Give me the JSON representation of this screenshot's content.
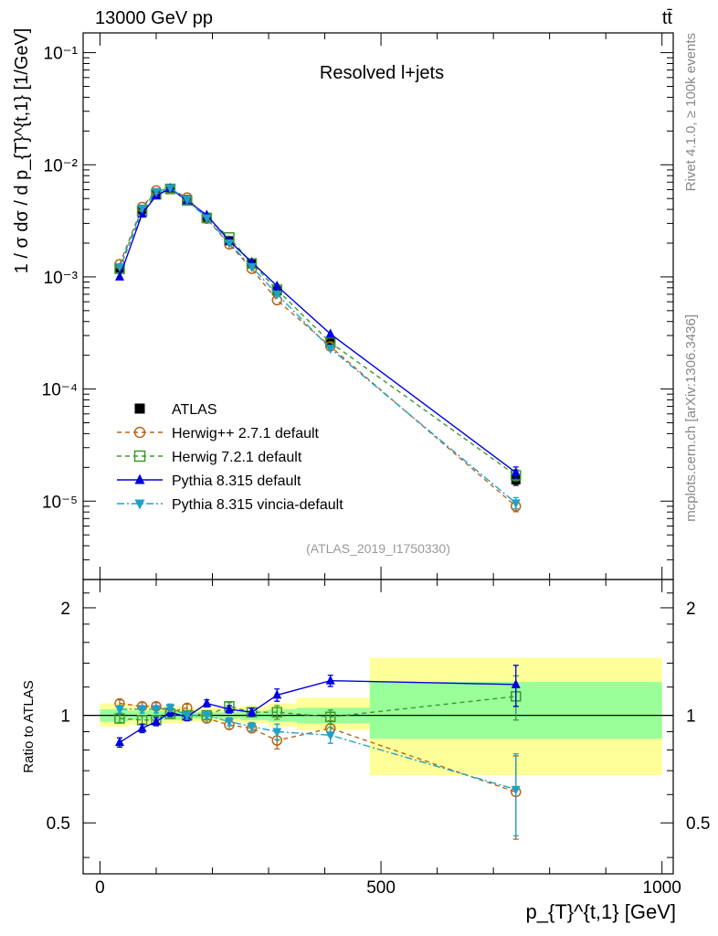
{
  "header": {
    "left": "13000 GeV pp",
    "right": "tt̄"
  },
  "side_labels": {
    "rivet": "Rivet 4.1.0, ≥ 100k events",
    "mcplots": "mcplots.cern.ch [arXiv:1306.3436]"
  },
  "chart_data": [
    {
      "type": "scatter",
      "panel": "main",
      "title": "Resolved l+jets",
      "analysis_tag": "(ATLAS_2019_I1750330)",
      "ylabel": "1 / σ dσ / d p_{T}^{t,1} [1/GeV]",
      "yscale": "log",
      "ylim": [
        2e-06,
        0.15
      ],
      "xlim": [
        -30,
        1020
      ],
      "y_tick_labels": [
        "10⁻¹",
        "10⁻²",
        "10⁻³",
        "10⁻⁴",
        "10⁻⁵"
      ],
      "x": [
        35,
        75,
        100,
        125,
        155,
        190,
        230,
        270,
        315,
        410,
        740
      ],
      "series": [
        {
          "name": "ATLAS",
          "color": "#000000",
          "marker": "square-filled",
          "values": [
            0.0012,
            0.004,
            0.0056,
            0.006,
            0.0049,
            0.0034,
            0.0021,
            0.0013,
            0.00075,
            0.00026,
            1.55e-05
          ]
        },
        {
          "name": "Herwig++ 2.7.1 default",
          "color": "#b5651d",
          "marker": "circle-open",
          "dash": "dash",
          "values": [
            0.0013,
            0.0042,
            0.0059,
            0.0061,
            0.0051,
            0.0033,
            0.00195,
            0.00118,
            0.00062,
            0.00024,
            9e-06
          ]
        },
        {
          "name": "Herwig 7.2.1 default",
          "color": "#3a9a2a",
          "marker": "square-open",
          "dash": "dash",
          "values": [
            0.00118,
            0.00385,
            0.00545,
            0.0061,
            0.0048,
            0.00335,
            0.00225,
            0.00132,
            0.00077,
            0.00026,
            1.7e-05
          ]
        },
        {
          "name": "Pythia 8.315 default",
          "color": "#0000e0",
          "marker": "triangle-up",
          "dash": "solid",
          "values": [
            0.001,
            0.00365,
            0.0053,
            0.00615,
            0.0048,
            0.00355,
            0.0021,
            0.00135,
            0.00083,
            0.00031,
            1.8e-05
          ]
        },
        {
          "name": "Pythia 8.315 vincia-default",
          "color": "#1fa0c8",
          "marker": "triangle-down",
          "dash": "dashdot",
          "values": [
            0.00123,
            0.0041,
            0.00575,
            0.0062,
            0.0049,
            0.00335,
            0.002,
            0.00123,
            0.0007,
            0.00023,
            9.6e-06
          ]
        }
      ]
    },
    {
      "type": "scatter",
      "panel": "ratio",
      "ylabel": "Ratio to ATLAS",
      "ylim": [
        0.36,
        2.4
      ],
      "xlim": [
        -30,
        1020
      ],
      "xlabel": "p_{T}^{t,1} [GeV]",
      "x_tick_labels": [
        "0",
        "500",
        "1000"
      ],
      "y_tick_labels": [
        "2",
        "1",
        "0.5"
      ],
      "x": [
        35,
        75,
        100,
        125,
        155,
        190,
        230,
        270,
        315,
        410,
        740
      ],
      "bands": [
        {
          "name": "stat",
          "color": "#99ff99",
          "edges": [
            0,
            50,
            100,
            150,
            200,
            250,
            300,
            350,
            480,
            1000
          ],
          "lo": [
            0.96,
            0.97,
            0.97,
            0.98,
            0.98,
            0.97,
            0.96,
            0.95,
            0.86
          ],
          "hi": [
            1.04,
            1.03,
            1.03,
            1.02,
            1.02,
            1.03,
            1.04,
            1.05,
            1.24
          ]
        },
        {
          "name": "total",
          "color": "#ffff99",
          "edges": [
            0,
            50,
            100,
            150,
            200,
            250,
            300,
            350,
            480,
            1000
          ],
          "lo": [
            0.93,
            0.94,
            0.95,
            0.96,
            0.96,
            0.95,
            0.93,
            0.91,
            0.68
          ],
          "hi": [
            1.08,
            1.07,
            1.06,
            1.05,
            1.05,
            1.06,
            1.08,
            1.12,
            1.45
          ]
        }
      ],
      "series": [
        {
          "name": "Herwig++ 2.7.1 default",
          "color": "#b5651d",
          "marker": "circle-open",
          "dash": "dash",
          "values": [
            1.08,
            1.06,
            1.06,
            1.02,
            1.05,
            0.98,
            0.94,
            0.92,
            0.85,
            0.92,
            0.61
          ]
        },
        {
          "name": "Herwig 7.2.1 default",
          "color": "#3a9a2a",
          "marker": "square-open",
          "dash": "dash",
          "values": [
            0.98,
            0.97,
            0.97,
            1.01,
            1.0,
            1.0,
            1.06,
            1.02,
            1.02,
            0.99,
            1.13
          ]
        },
        {
          "name": "Pythia 8.315 default",
          "color": "#0000e0",
          "marker": "triangle-up",
          "dash": "solid",
          "values": [
            0.84,
            0.92,
            0.96,
            1.02,
            0.99,
            1.08,
            1.04,
            1.02,
            1.14,
            1.25,
            1.22
          ]
        },
        {
          "name": "Pythia 8.315 vincia-default",
          "color": "#1fa0c8",
          "marker": "triangle-down",
          "dash": "dashdot",
          "values": [
            1.04,
            1.04,
            1.04,
            1.05,
            1.0,
            1.0,
            0.96,
            0.93,
            0.9,
            0.88,
            0.62
          ]
        }
      ]
    }
  ]
}
